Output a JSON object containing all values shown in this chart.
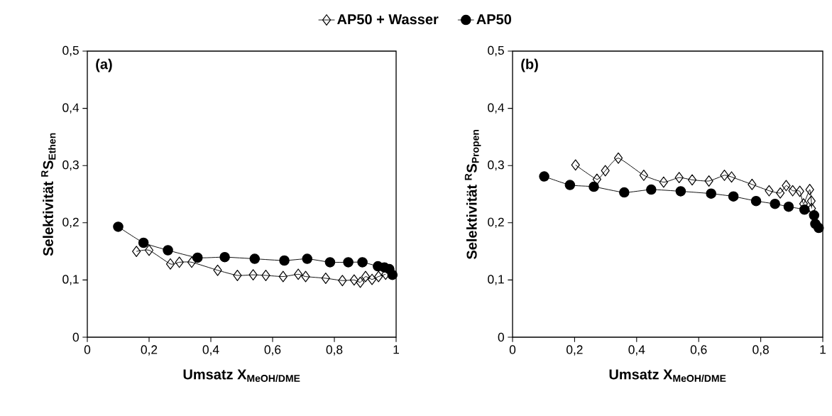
{
  "chart_data": [
    {
      "type": "line",
      "ylabel": "Selektivität $^{R}$S$_{Ethen}$",
      "xlabel": "Umsatz X$_{MeOH/DME}$",
      "annotations": [
        "(a)"
      ],
      "legend": "top",
      "grid": false,
      "line_style": "solid",
      "xlim": [
        0,
        1
      ],
      "xticks": [
        0,
        {
          "value": 0.2,
          "label": "0,2"
        },
        {
          "value": 0.4,
          "label": "0,4"
        },
        {
          "value": 0.6,
          "label": "0,6"
        },
        {
          "value": 0.8,
          "label": "0,8"
        },
        1
      ],
      "ylim": [
        0,
        0.5
      ],
      "yticks": [
        0,
        {
          "value": 0.1,
          "label": "0,1"
        },
        {
          "value": 0.2,
          "label": "0,2"
        },
        {
          "value": 0.3,
          "label": "0,3"
        },
        {
          "value": 0.4,
          "label": "0,4"
        },
        {
          "value": 0.5,
          "label": "0,5"
        }
      ],
      "series": [
        {
          "name": "AP50 + Wasser",
          "color": "#000000",
          "marker": "diamond",
          "x": [
            0.159,
            0.2,
            0.269,
            0.298,
            0.338,
            0.422,
            0.486,
            0.537,
            0.578,
            0.634,
            0.683,
            0.707,
            0.772,
            0.826,
            0.864,
            0.884,
            0.901,
            0.922,
            0.943,
            0.966
          ],
          "values": [
            0.15,
            0.152,
            0.128,
            0.131,
            0.131,
            0.117,
            0.108,
            0.109,
            0.108,
            0.106,
            0.11,
            0.106,
            0.103,
            0.099,
            0.1,
            0.096,
            0.106,
            0.101,
            0.106,
            0.11
          ]
        },
        {
          "name": "AP50",
          "color": "#000000",
          "marker": "circle",
          "x": [
            0.1,
            0.182,
            0.261,
            0.357,
            0.445,
            0.542,
            0.638,
            0.712,
            0.786,
            0.845,
            0.891,
            0.941,
            0.962,
            0.978,
            0.988
          ],
          "values": [
            0.193,
            0.165,
            0.152,
            0.139,
            0.14,
            0.137,
            0.134,
            0.137,
            0.131,
            0.131,
            0.131,
            0.124,
            0.122,
            0.119,
            0.109
          ]
        }
      ]
    },
    {
      "type": "line",
      "ylabel": "Selektivität $^{R}$S$_{Propen}$",
      "xlabel": "Umsatz X$_{MeOH/DME}$",
      "annotations": [
        "(b)"
      ],
      "grid": false,
      "line_style": "solid",
      "xlim": [
        0,
        1
      ],
      "xticks": [
        0,
        {
          "value": 0.2,
          "label": "0,2"
        },
        {
          "value": 0.4,
          "label": "0,4"
        },
        {
          "value": 0.6,
          "label": "0,6"
        },
        {
          "value": 0.8,
          "label": "0,8"
        },
        1
      ],
      "ylim": [
        0,
        0.5
      ],
      "yticks": [
        0,
        {
          "value": 0.1,
          "label": "0,1"
        },
        {
          "value": 0.2,
          "label": "0,2"
        },
        {
          "value": 0.3,
          "label": "0,3"
        },
        {
          "value": 0.4,
          "label": "0,4"
        },
        {
          "value": 0.5,
          "label": "0,5"
        }
      ],
      "series": [
        {
          "color": "#000000",
          "marker": "diamond",
          "x": [
            0.203,
            0.272,
            0.299,
            0.341,
            0.423,
            0.487,
            0.537,
            0.579,
            0.633,
            0.683,
            0.706,
            0.772,
            0.827,
            0.863,
            0.882,
            0.903,
            0.926,
            0.938,
            0.958,
            0.963,
            0.964
          ],
          "values": [
            0.301,
            0.276,
            0.291,
            0.313,
            0.283,
            0.271,
            0.279,
            0.275,
            0.273,
            0.283,
            0.28,
            0.267,
            0.256,
            0.252,
            0.265,
            0.256,
            0.255,
            0.233,
            0.258,
            0.238,
            0.225
          ]
        },
        {
          "color": "#000000",
          "marker": "circle",
          "x": [
            0.102,
            0.185,
            0.262,
            0.36,
            0.447,
            0.542,
            0.64,
            0.712,
            0.785,
            0.846,
            0.89,
            0.941,
            0.972,
            0.976,
            0.987
          ],
          "values": [
            0.281,
            0.266,
            0.263,
            0.253,
            0.258,
            0.255,
            0.251,
            0.246,
            0.238,
            0.233,
            0.228,
            0.223,
            0.213,
            0.198,
            0.191
          ]
        }
      ]
    }
  ]
}
